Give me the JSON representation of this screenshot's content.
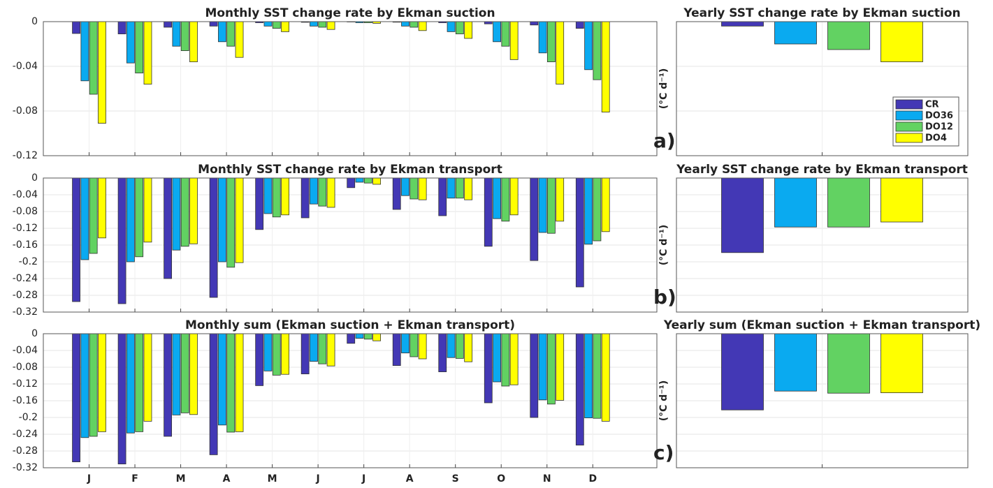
{
  "chart_data": [
    {
      "type": "bar",
      "title": "Monthly SST change rate by Ekman suction",
      "ylim": [
        -0.12,
        0
      ],
      "yticks": [
        0,
        -0.04,
        -0.08,
        -0.12
      ],
      "series": [
        {
          "color": "#4338b5",
          "values": [
            -0.0106,
            -0.011,
            -0.005,
            -0.004,
            -0.001,
            -0.0006,
            -0.0003,
            -0.0005,
            -0.001,
            -0.002,
            -0.003,
            -0.006
          ]
        },
        {
          "color": "#0aaaf0",
          "values": [
            -0.053,
            -0.037,
            -0.022,
            -0.018,
            -0.004,
            -0.004,
            -0.001,
            -0.004,
            -0.009,
            -0.018,
            -0.028,
            -0.043
          ]
        },
        {
          "color": "#62d262",
          "values": [
            -0.065,
            -0.046,
            -0.026,
            -0.022,
            -0.006,
            -0.005,
            -0.001,
            -0.005,
            -0.011,
            -0.022,
            -0.036,
            -0.052
          ]
        },
        {
          "color": "#ffff00",
          "values": [
            -0.091,
            -0.056,
            -0.036,
            -0.032,
            -0.009,
            -0.007,
            -0.0015,
            -0.008,
            -0.015,
            -0.034,
            -0.056,
            -0.081
          ]
        }
      ]
    },
    {
      "type": "bar",
      "title": "Yearly SST change rate by Ekman suction",
      "ylabel": "(°C d⁻¹)",
      "annotation": "a)",
      "ylim": [
        -0.12,
        0
      ],
      "yticks": [
        0,
        -0.04,
        -0.08,
        -0.12
      ],
      "legend": "lower right",
      "series": [
        {
          "name": "CR",
          "color": "#4338b5",
          "values": [
            -0.004
          ]
        },
        {
          "name": "DO36",
          "color": "#0aaaf0",
          "values": [
            -0.02
          ]
        },
        {
          "name": "DO12",
          "color": "#62d262",
          "values": [
            -0.025
          ]
        },
        {
          "name": "DO4",
          "color": "#ffff00",
          "values": [
            -0.036
          ]
        }
      ]
    },
    {
      "type": "bar",
      "title": "Monthly SST change rate by Ekman transport",
      "ylim": [
        -0.32,
        0
      ],
      "yticks": [
        0,
        -0.04,
        -0.08,
        -0.12,
        -0.16,
        -0.2,
        -0.24,
        -0.28,
        -0.32
      ],
      "series": [
        {
          "color": "#4338b5",
          "values": [
            -0.295,
            -0.3,
            -0.24,
            -0.285,
            -0.123,
            -0.095,
            -0.023,
            -0.075,
            -0.09,
            -0.163,
            -0.197,
            -0.26
          ]
        },
        {
          "color": "#0aaaf0",
          "values": [
            -0.195,
            -0.2,
            -0.172,
            -0.2,
            -0.085,
            -0.062,
            -0.01,
            -0.042,
            -0.048,
            -0.097,
            -0.13,
            -0.158
          ]
        },
        {
          "color": "#62d262",
          "values": [
            -0.18,
            -0.188,
            -0.163,
            -0.213,
            -0.093,
            -0.067,
            -0.012,
            -0.05,
            -0.048,
            -0.103,
            -0.132,
            -0.15
          ]
        },
        {
          "color": "#ffff00",
          "values": [
            -0.143,
            -0.153,
            -0.157,
            -0.202,
            -0.088,
            -0.07,
            -0.015,
            -0.052,
            -0.052,
            -0.088,
            -0.103,
            -0.128
          ]
        }
      ]
    },
    {
      "type": "bar",
      "title": "Yearly SST change rate by Ekman transport",
      "ylabel": "(°C d⁻¹)",
      "annotation": "b)",
      "ylim": [
        -0.32,
        0
      ],
      "yticks": [
        0,
        -0.04,
        -0.08,
        -0.12,
        -0.16,
        -0.2,
        -0.24,
        -0.28,
        -0.32
      ],
      "series": [
        {
          "color": "#4338b5",
          "values": [
            -0.178
          ]
        },
        {
          "color": "#0aaaf0",
          "values": [
            -0.117
          ]
        },
        {
          "color": "#62d262",
          "values": [
            -0.117
          ]
        },
        {
          "color": "#ffff00",
          "values": [
            -0.105
          ]
        }
      ]
    },
    {
      "type": "bar",
      "title": "Monthly sum (Ekman suction + Ekman transport)",
      "categories": [
        "J",
        "F",
        "M",
        "A",
        "M",
        "J",
        "J",
        "A",
        "S",
        "O",
        "N",
        "D"
      ],
      "ylim": [
        -0.32,
        0
      ],
      "yticks": [
        0,
        -0.04,
        -0.08,
        -0.12,
        -0.16,
        -0.2,
        -0.24,
        -0.28,
        -0.32
      ],
      "series": [
        {
          "color": "#4338b5",
          "values": [
            -0.306,
            -0.311,
            -0.245,
            -0.289,
            -0.124,
            -0.096,
            -0.023,
            -0.076,
            -0.091,
            -0.165,
            -0.2,
            -0.266
          ]
        },
        {
          "color": "#0aaaf0",
          "values": [
            -0.248,
            -0.237,
            -0.194,
            -0.218,
            -0.089,
            -0.066,
            -0.011,
            -0.046,
            -0.057,
            -0.115,
            -0.158,
            -0.201
          ]
        },
        {
          "color": "#62d262",
          "values": [
            -0.245,
            -0.234,
            -0.189,
            -0.235,
            -0.099,
            -0.072,
            -0.013,
            -0.055,
            -0.059,
            -0.125,
            -0.168,
            -0.202
          ]
        },
        {
          "color": "#ffff00",
          "values": [
            -0.234,
            -0.209,
            -0.193,
            -0.234,
            -0.097,
            -0.077,
            -0.017,
            -0.06,
            -0.067,
            -0.122,
            -0.159,
            -0.209
          ]
        }
      ]
    },
    {
      "type": "bar",
      "title": "Yearly sum (Ekman suction + Ekman transport)",
      "ylabel": "(°C d⁻¹)",
      "annotation": "c)",
      "ylim": [
        -0.32,
        0
      ],
      "yticks": [
        0,
        -0.04,
        -0.08,
        -0.12,
        -0.16,
        -0.2,
        -0.24,
        -0.28,
        -0.32
      ],
      "series": [
        {
          "color": "#4338b5",
          "values": [
            -0.182
          ]
        },
        {
          "color": "#0aaaf0",
          "values": [
            -0.137
          ]
        },
        {
          "color": "#62d262",
          "values": [
            -0.142
          ]
        },
        {
          "color": "#ffff00",
          "values": [
            -0.141
          ]
        }
      ]
    }
  ]
}
